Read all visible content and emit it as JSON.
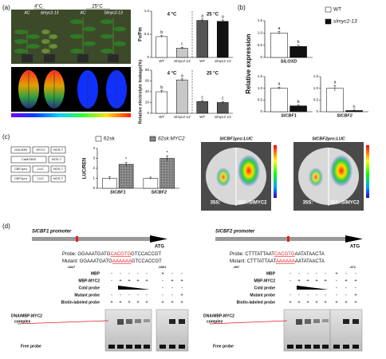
{
  "panel_labels": [
    "(a)",
    "(b)",
    "(c)",
    "(d)"
  ],
  "panel_a": {
    "temps": [
      "4°C",
      "25°C"
    ],
    "genotypes": [
      "AC",
      "slmyc2-13",
      "AC",
      "Slmyc2-13"
    ]
  },
  "chart_data": [
    {
      "type": "bar",
      "ylabel": "Fv/Fm",
      "categories": [
        "WT",
        "slmyc2-13",
        "WT",
        "slmyc2-13"
      ],
      "groups": [
        "4 °C",
        "25 °C"
      ],
      "values": [
        0.45,
        0.2,
        0.8,
        0.78
      ],
      "errors": [
        0.02,
        0.02,
        0.03,
        0.03
      ],
      "annotations": [
        "b",
        "c",
        "a",
        "a"
      ],
      "colors": [
        "#ffffff",
        "#c8c8c8",
        "#555555",
        "#111111"
      ],
      "ylim": [
        0,
        1
      ],
      "yticks": [
        0,
        0.5,
        {
          "value": 1,
          "label": "1.0"
        }
      ]
    },
    {
      "type": "bar",
      "ylabel": "Relative electrolyte leakage(%)",
      "categories": [
        "WT",
        "slmyc2-13",
        "WT",
        "slmyc2-13"
      ],
      "groups": [
        "4 °C",
        "25 °C"
      ],
      "values": [
        40,
        62,
        22,
        20
      ],
      "errors": [
        2,
        2,
        2,
        2
      ],
      "annotations": [
        "b",
        "a",
        "c",
        "c"
      ],
      "colors": [
        "#ffffff",
        "#c8c8c8",
        "#555555",
        "#555555"
      ],
      "ylim": [
        0,
        80
      ],
      "yticks": [
        0,
        20,
        40,
        60,
        80
      ]
    },
    {
      "type": "bar",
      "ylabel": "Relative expression",
      "legend": true,
      "categories": [
        "SlLOXD"
      ],
      "series": [
        {
          "name": "WT",
          "color": "#ffffff",
          "values": [
            1.0
          ],
          "errors": [
            0.06
          ],
          "annotations": [
            "a"
          ]
        },
        {
          "name": "slmyc2-13",
          "color": "#111111",
          "values": [
            0.45
          ],
          "errors": [
            0.05
          ],
          "annotations": [
            "b"
          ]
        }
      ],
      "ylim": [
        0,
        1.5
      ],
      "yticks": [
        0,
        0.5,
        {
          "value": 1,
          "label": "1.0"
        },
        1.5
      ]
    },
    {
      "type": "bar",
      "categories": [
        "SlCBF1"
      ],
      "series": [
        {
          "color": "#ffffff",
          "values": [
            1.0
          ],
          "errors": [
            0.05
          ],
          "annotations": [
            "a"
          ]
        },
        {
          "color": "#111111",
          "values": [
            0.25
          ],
          "errors": [
            0.03
          ],
          "annotations": [
            "b"
          ]
        }
      ],
      "ylim": [
        0,
        1.5
      ],
      "yticks": [
        0,
        0.5,
        {
          "value": 1,
          "label": "1.0"
        },
        1.5
      ]
    },
    {
      "type": "bar",
      "categories": [
        "SlCBF2"
      ],
      "series": [
        {
          "color": "#ffffff",
          "values": [
            1.0
          ],
          "errors": [
            0.12
          ],
          "annotations": [
            "a"
          ]
        },
        {
          "color": "#111111",
          "values": [
            0.05
          ],
          "errors": [
            0.02
          ],
          "annotations": [
            "b"
          ]
        }
      ],
      "ylim": [
        0,
        1.5
      ],
      "yticks": [
        0,
        0.5,
        {
          "value": 1,
          "label": "1.0"
        },
        1.5
      ]
    },
    {
      "type": "bar",
      "ylabel": "LUC/REN",
      "legend": true,
      "categories": [
        "SlCBF1",
        "SlCBF2"
      ],
      "series": [
        {
          "name": "62sk",
          "color": "#ffffff",
          "values": [
            1.0,
            1.0
          ],
          "errors": [
            0.15,
            0.12
          ]
        },
        {
          "name": "62sk:MYC2",
          "color": "#9a9a9a",
          "values": [
            2.4,
            3.0
          ],
          "errors": [
            0.2,
            0.25
          ],
          "annotations": [
            "*",
            "*"
          ]
        }
      ],
      "ylim": [
        0,
        4
      ],
      "yticks": [
        0,
        1,
        2,
        3,
        4
      ]
    }
  ],
  "panel_c": {
    "constructs": [
      [
        "GAL4DB",
        "MYC2",
        "NOS-T"
      ],
      [
        "CaMV35S",
        "NOS-T"
      ],
      [
        "CBF1pro",
        "LUC",
        "NOS-T"
      ],
      [
        "CBF2pro",
        "LUC",
        "NOS-T"
      ]
    ],
    "images": [
      {
        "title": "SlCBF1pro:LUC",
        "left": "35S:",
        "right": "35S::SlMYC2"
      },
      {
        "title": "SlCBF2pro:LUC",
        "left": "35S:",
        "right": "35S::SlMYC2"
      }
    ]
  },
  "panel_d": [
    {
      "promoter": "SlCBF1 promoter",
      "atg": "ATG",
      "probe_label": "Probe:",
      "probe": [
        "GGAAATGATG",
        "CACGTG",
        "GTCCACCGT"
      ],
      "mutant_label": "Mutant:",
      "mutant": [
        "GGAAATGATG",
        "AAAAAA",
        "GTCCACCGT"
      ],
      "positions": [
        "-1827",
        "-1801"
      ],
      "rows": [
        {
          "label": "MBP",
          "a": [
            "-",
            "-",
            "-",
            "-",
            "-"
          ],
          "b": [
            "+",
            "-",
            "-"
          ]
        },
        {
          "label": "MBP-MYC2",
          "a": [
            "-",
            "+",
            "+",
            "+",
            "+"
          ],
          "b": [
            "-",
            "+",
            "+"
          ]
        },
        {
          "label": "Cold probe",
          "a": [],
          "b": [
            "-",
            "-",
            "-"
          ]
        },
        {
          "label": "Mutant probe",
          "a": [
            "-",
            "-",
            "-",
            "-",
            "-"
          ],
          "b": [
            "-",
            "-",
            "+"
          ]
        },
        {
          "label": "Biotin-labeled probe",
          "a": [
            "+",
            "+",
            "+",
            "+",
            "+"
          ],
          "b": [
            "+",
            "+",
            "+"
          ]
        }
      ],
      "complex": [
        "DNA/MBP-MYC2",
        "complex"
      ],
      "free": "Free probe"
    },
    {
      "promoter": "SlCBF2 promoter",
      "atg": "ATG",
      "probe_label": "Probe:",
      "probe": [
        "CTTTATTAAT",
        "CACGTG",
        "AATATAACTA"
      ],
      "mutant_label": "Mutant:",
      "mutant": [
        "CTTTATTAAT",
        "AAAAAA",
        "AATATAACTA"
      ],
      "positions": [
        "-497",
        "-471"
      ],
      "rows": [
        {
          "label": "MBP",
          "a": [
            "-",
            "-",
            "-",
            "-",
            "-"
          ],
          "b": [
            "+",
            "-",
            "-"
          ]
        },
        {
          "label": "MBP-MYC2",
          "a": [
            "-",
            "+",
            "+",
            "+",
            "+"
          ],
          "b": [
            "-",
            "+",
            "+"
          ]
        },
        {
          "label": "Cold probe",
          "a": [],
          "b": [
            "-",
            "-",
            "-"
          ]
        },
        {
          "label": "Mutant probe",
          "a": [
            "-",
            "-",
            "-",
            "-",
            "-"
          ],
          "b": [
            "-",
            "-",
            "+"
          ]
        },
        {
          "label": "Biotin-labeled probe",
          "a": [
            "+",
            "+",
            "+",
            "+",
            "+"
          ],
          "b": [
            "+",
            "+",
            "+"
          ]
        }
      ],
      "complex": [
        "DNA/MBP-MYC2",
        "complex"
      ],
      "free": "Free probe"
    }
  ]
}
